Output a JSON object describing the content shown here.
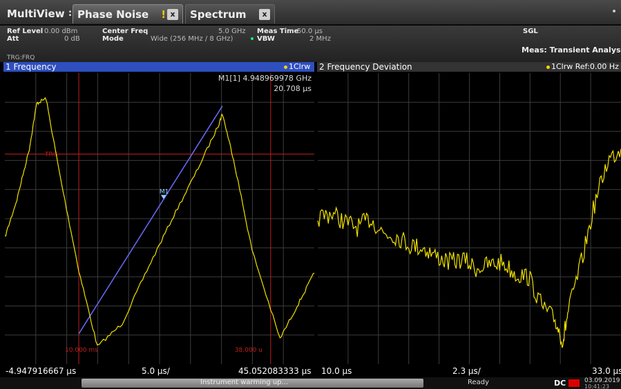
{
  "tabs": {
    "multiview": "MultiView",
    "phase_noise": "Phase Noise",
    "phase_noise_warn": "!",
    "spectrum": "Spectrum",
    "spectrum_warn": "!",
    "close_glyph": "x"
  },
  "settings": {
    "ref_level_label": "Ref Level",
    "ref_level_value": "0.00 dBm",
    "att_label": "Att",
    "att_value": "0 dB",
    "center_freq_label": "Center Freq",
    "center_freq_value": "5.0 GHz",
    "mode_label": "Mode",
    "mode_value": "Wide (256 MHz / 8 GHz)",
    "meas_time_label": "Meas Time",
    "meas_time_value": "50.0 µs",
    "vbw_label": "VBW",
    "vbw_value": "2 MHz",
    "sgl": "SGL",
    "meas_name": "Meas: Transient Analysis",
    "trigger": "TRG:FRQ"
  },
  "panel1": {
    "title": "1 Frequency",
    "trace": "1Clrw",
    "marker_line1": "M1[1] 4.948969978 GHz",
    "marker_line2": "20.708 µs",
    "marker_label": "M1",
    "trg_label": "TRG",
    "left_limit_label": "10.000 ms",
    "right_limit_label": "38.000 u",
    "x_start": "-4.947916667 µs",
    "x_div": "5.0 µs/",
    "x_stop": "45.052083333 µs",
    "color_trace": "#f2e200",
    "color_fit": "#6a6aff",
    "color_trg": "#c02020"
  },
  "panel2": {
    "title": "2 Frequency Deviation",
    "trace": "1Clrw Ref:0.00 Hz",
    "x_start": "10.0 µs",
    "x_div": "2.3 µs/",
    "x_stop": "33.0 µs"
  },
  "status": {
    "message": "Instrument warming up...",
    "ready": "Ready",
    "dc": "DC",
    "date": "03.09.2019",
    "time": "10:41:23"
  },
  "chart_data": [
    {
      "type": "line",
      "title": "1 Frequency",
      "x": [
        -4.95,
        -3.0,
        -1.0,
        0.2,
        1.7,
        4.0,
        7.0,
        10.0,
        14.0,
        18.0,
        22.0,
        26.0,
        29.5,
        30.2,
        32.0,
        35.0,
        39.5,
        42.5,
        45.05
      ],
      "y": [
        4.9475,
        4.949,
        4.951,
        4.9528,
        4.953,
        4.9499,
        4.9462,
        4.9432,
        4.9441,
        4.9462,
        4.9482,
        4.9501,
        4.9519,
        4.9524,
        4.9506,
        4.947,
        4.9435,
        4.9449,
        4.9461
      ],
      "xlabel": "",
      "ylabel": "",
      "x_range": [
        -4.947916667,
        45.052083333
      ],
      "marker": {
        "name": "M1",
        "x": 20.708,
        "y": 4.948969978
      },
      "grid": true
    },
    {
      "type": "line",
      "title": "2 Frequency Deviation",
      "x": [
        10.0,
        11.0,
        12.0,
        13.0,
        14.0,
        15.0,
        16.0,
        17.0,
        18.0,
        19.0,
        20.0,
        21.0,
        22.0,
        23.0,
        24.0,
        25.0,
        26.0,
        27.0,
        28.0,
        28.6,
        29.0,
        30.0,
        31.0,
        32.0,
        33.0
      ],
      "y": [
        0.5,
        0.52,
        0.49,
        0.47,
        0.5,
        0.45,
        0.44,
        0.41,
        0.4,
        0.37,
        0.35,
        0.36,
        0.33,
        0.34,
        0.35,
        0.31,
        0.3,
        0.2,
        0.15,
        0.08,
        0.18,
        0.35,
        0.55,
        0.7,
        0.74
      ],
      "xlabel": "",
      "ylabel": "",
      "x_range": [
        10.0,
        33.0
      ],
      "grid": true
    }
  ]
}
